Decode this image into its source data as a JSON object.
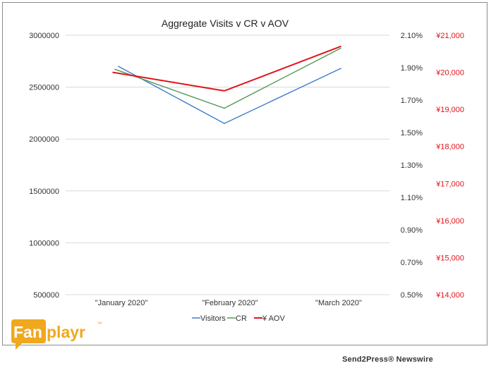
{
  "chart_data": {
    "type": "line",
    "title": "Aggregate Visits v CR v AOV",
    "categories": [
      "\"January 2020\"",
      "\"February 2020\"",
      "\"March 2020\""
    ],
    "y_left": {
      "ticks": [
        "3000000",
        "2500000",
        "2000000",
        "1500000",
        "1000000",
        "500000"
      ],
      "range": [
        500000,
        3000000
      ]
    },
    "y_right_pct": {
      "ticks": [
        "2.10%",
        "1.90%",
        "1.70%",
        "1.50%",
        "1.30%",
        "1.10%",
        "0.90%",
        "0.70%",
        "0.50%"
      ],
      "range": [
        0.5,
        2.1
      ]
    },
    "y_right_yen": {
      "ticks": [
        "¥21,000",
        "¥20,000",
        "¥19,000",
        "¥18,000",
        "¥17,000",
        "¥16,000",
        "¥15,000",
        "¥14,000"
      ],
      "range": [
        14000,
        21000
      ],
      "color": "#e0141b"
    },
    "series": [
      {
        "name": "Visitors",
        "axis": "left",
        "color": "#3d7cc9",
        "values": [
          2700000,
          2150000,
          2680000
        ]
      },
      {
        "name": "CR",
        "axis": "pct",
        "color": "#4f9a55",
        "values": [
          1.89,
          1.65,
          2.02
        ]
      },
      {
        "name": "¥ AOV",
        "axis": "yen",
        "color": "#e0141b",
        "values": [
          20000,
          19500,
          20700
        ]
      }
    ],
    "grid": true,
    "legend_position": "bottom"
  },
  "logo": {
    "text_fan": "Fan",
    "text_playr": "playr",
    "tm": "™",
    "color": "#f0a81e"
  },
  "footer": {
    "text": "Send2Press® Newswire"
  }
}
